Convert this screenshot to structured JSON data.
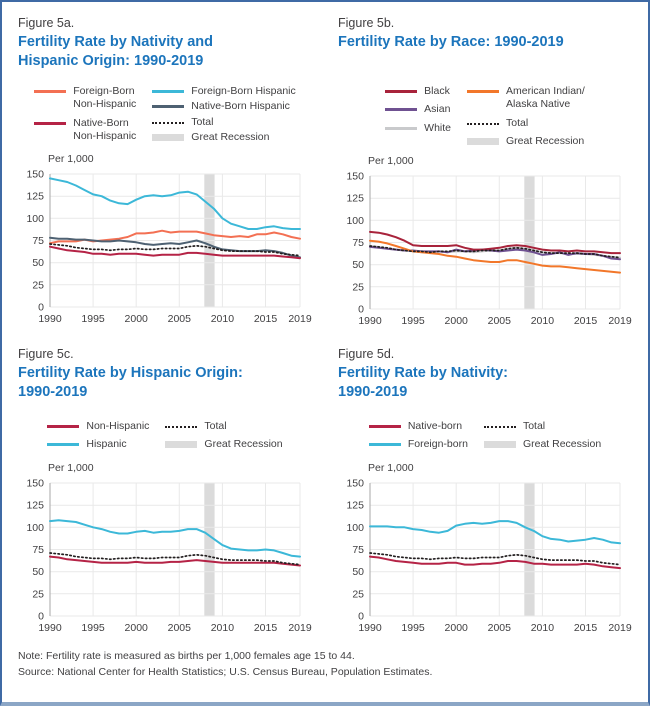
{
  "colors": {
    "title_blue": "#1C75BC",
    "text": "#414042",
    "border_blue": "#3F6AA5",
    "cyan": "#3CB8D8",
    "coral": "#F37053",
    "crimson": "#B52346",
    "slate": "#4E6172",
    "black_series": "#A8233B",
    "purple": "#6F5191",
    "white_series": "#C9CACC",
    "orange": "#F2772A",
    "dotted": "#231F20",
    "recession_band": "#DBDBDB",
    "gridline": "#E9E9E9",
    "axis": "#A7A7A7"
  },
  "figures": [
    {
      "label": "Figure 5a.",
      "title_lines": [
        "Fertility Rate by Nativity and",
        "Hispanic Origin: 1990-2019"
      ],
      "unit_label": "Per 1,000",
      "legend": {
        "col1": [
          {
            "type": "line",
            "color": "#F37053",
            "label": "Foreign-Born\nNon-Hispanic"
          },
          {
            "type": "line",
            "color": "#B52346",
            "label": "Native-Born\nNon-Hispanic"
          }
        ],
        "col2": [
          {
            "type": "line",
            "color": "#3CB8D8",
            "label": "Foreign-Born Hispanic"
          },
          {
            "type": "line",
            "color": "#4E6172",
            "label": "Native-Born Hispanic"
          },
          {
            "type": "dotted",
            "color": "#231F20",
            "label": "Total"
          },
          {
            "type": "band",
            "color": "#DBDBDB",
            "label": "Great Recession"
          }
        ]
      }
    },
    {
      "label": "Figure 5b.",
      "title_lines": [
        "Fertility Rate by Race: 1990-2019"
      ],
      "unit_label": "Per 1,000",
      "legend": {
        "col1": [
          {
            "type": "line",
            "color": "#A8233B",
            "label": "Black"
          },
          {
            "type": "line",
            "color": "#6F5191",
            "label": "Asian"
          },
          {
            "type": "line",
            "color": "#C9CACC",
            "label": "White"
          }
        ],
        "col2": [
          {
            "type": "line",
            "color": "#F2772A",
            "label": "American Indian/\nAlaska Native"
          },
          {
            "type": "dotted",
            "color": "#231F20",
            "label": "Total"
          },
          {
            "type": "band",
            "color": "#DBDBDB",
            "label": "Great Recession"
          }
        ]
      }
    },
    {
      "label": "Figure 5c.",
      "title_lines": [
        "Fertility Rate by Hispanic Origin:",
        "1990-2019"
      ],
      "unit_label": "Per 1,000",
      "legend": {
        "col1": [
          {
            "type": "line",
            "color": "#B52346",
            "label": "Non-Hispanic"
          },
          {
            "type": "line",
            "color": "#3CB8D8",
            "label": "Hispanic"
          }
        ],
        "col2": [
          {
            "type": "dotted",
            "color": "#231F20",
            "label": "Total"
          },
          {
            "type": "band",
            "color": "#DBDBDB",
            "label": "Great Recession"
          }
        ]
      }
    },
    {
      "label": "Figure 5d.",
      "title_lines": [
        "Fertility Rate by Nativity:",
        "1990-2019"
      ],
      "unit_label": "Per 1,000",
      "legend": {
        "col1": [
          {
            "type": "line",
            "color": "#B52346",
            "label": "Native-born"
          },
          {
            "type": "line",
            "color": "#3CB8D8",
            "label": "Foreign-born"
          }
        ],
        "col2": [
          {
            "type": "dotted",
            "color": "#231F20",
            "label": "Total"
          },
          {
            "type": "band",
            "color": "#DBDBDB",
            "label": "Great Recession"
          }
        ]
      }
    }
  ],
  "chart_data": [
    {
      "type": "line",
      "figure": "Figure 5a.",
      "title": "Fertility Rate by Nativity and Hispanic Origin: 1990-2019",
      "ylabel": "Per 1,000",
      "ylim": [
        0,
        150
      ],
      "yticks": [
        0,
        25,
        50,
        75,
        100,
        125,
        150
      ],
      "xticks": [
        1990,
        1995,
        2000,
        2005,
        2010,
        2015,
        2019
      ],
      "recession_band": [
        2007.9,
        2009.1
      ],
      "x": [
        1990,
        1991,
        1992,
        1993,
        1994,
        1995,
        1996,
        1997,
        1998,
        1999,
        2000,
        2001,
        2002,
        2003,
        2004,
        2005,
        2006,
        2007,
        2008,
        2009,
        2010,
        2011,
        2012,
        2013,
        2014,
        2015,
        2016,
        2017,
        2018,
        2019
      ],
      "series": [
        {
          "name": "Foreign-Born Hispanic",
          "color": "#3CB8D8",
          "style": "solid",
          "values": [
            145,
            143,
            141,
            137,
            132,
            127,
            125,
            120,
            117,
            116,
            121,
            125,
            126,
            125,
            126,
            129,
            130,
            127,
            119,
            111,
            100,
            94,
            91,
            88,
            88,
            90,
            91,
            89,
            88,
            88
          ]
        },
        {
          "name": "Foreign-Born Non-Hispanic",
          "color": "#F37053",
          "style": "solid",
          "values": [
            72,
            74,
            74,
            74,
            76,
            74,
            75,
            76,
            77,
            79,
            83,
            83,
            84,
            86,
            84,
            85,
            85,
            85,
            83,
            81,
            80,
            79,
            80,
            79,
            82,
            82,
            84,
            82,
            79,
            77
          ]
        },
        {
          "name": "Native-Born Hispanic",
          "color": "#4E6172",
          "style": "solid",
          "values": [
            78,
            77,
            77,
            76,
            76,
            75,
            74,
            74,
            75,
            74,
            73,
            71,
            70,
            71,
            72,
            71,
            73,
            75,
            72,
            68,
            65,
            64,
            63,
            63,
            63,
            64,
            63,
            61,
            58,
            56
          ]
        },
        {
          "name": "Native-Born Non-Hispanic",
          "color": "#B52346",
          "style": "solid",
          "values": [
            68,
            66,
            64,
            63,
            62,
            60,
            60,
            59,
            60,
            60,
            60,
            59,
            58,
            59,
            59,
            59,
            61,
            61,
            60,
            59,
            58,
            58,
            58,
            58,
            58,
            58,
            58,
            57,
            56,
            55
          ]
        },
        {
          "name": "Total",
          "color": "#231F20",
          "style": "dotted",
          "values": [
            71,
            70,
            69,
            67,
            66,
            65,
            65,
            64,
            65,
            65,
            66,
            65,
            65,
            66,
            66,
            66,
            68,
            69,
            68,
            66,
            64,
            63,
            63,
            63,
            63,
            62,
            62,
            60,
            59,
            58
          ]
        }
      ]
    },
    {
      "type": "line",
      "figure": "Figure 5b.",
      "title": "Fertility Rate by Race: 1990-2019",
      "ylabel": "Per 1,000",
      "ylim": [
        0,
        150
      ],
      "yticks": [
        0,
        25,
        50,
        75,
        100,
        125,
        150
      ],
      "xticks": [
        1990,
        1995,
        2000,
        2005,
        2010,
        2015,
        2019
      ],
      "recession_band": [
        2007.9,
        2009.1
      ],
      "x": [
        1990,
        1991,
        1992,
        1993,
        1994,
        1995,
        1996,
        1997,
        1998,
        1999,
        2000,
        2001,
        2002,
        2003,
        2004,
        2005,
        2006,
        2007,
        2008,
        2009,
        2010,
        2011,
        2012,
        2013,
        2014,
        2015,
        2016,
        2017,
        2018,
        2019
      ],
      "series": [
        {
          "name": "White",
          "color": "#C9CACC",
          "style": "solid",
          "values": [
            71,
            70,
            68,
            67,
            66,
            65,
            64,
            64,
            65,
            64,
            65,
            65,
            64,
            65,
            66,
            66,
            68,
            69,
            68,
            66,
            64,
            63,
            63,
            62,
            62,
            62,
            61,
            60,
            59,
            58
          ]
        },
        {
          "name": "Asian",
          "color": "#6F5191",
          "style": "solid",
          "values": [
            70,
            69,
            68,
            67,
            66,
            66,
            65,
            65,
            65,
            64,
            67,
            65,
            66,
            67,
            66,
            65,
            66,
            67,
            66,
            64,
            61,
            62,
            64,
            61,
            63,
            62,
            62,
            60,
            57,
            56
          ]
        },
        {
          "name": "Black",
          "color": "#A8233B",
          "style": "solid",
          "values": [
            87,
            86,
            84,
            81,
            77,
            72,
            71,
            71,
            71,
            71,
            72,
            69,
            67,
            67,
            68,
            69,
            71,
            72,
            71,
            69,
            67,
            66,
            66,
            65,
            66,
            65,
            65,
            64,
            63,
            63
          ]
        },
        {
          "name": "American Indian/Alaska Native",
          "color": "#F2772A",
          "style": "solid",
          "values": [
            77,
            76,
            74,
            71,
            68,
            65,
            64,
            63,
            62,
            60,
            59,
            57,
            55,
            54,
            53,
            53,
            55,
            55,
            53,
            51,
            49,
            48,
            48,
            47,
            46,
            45,
            44,
            43,
            42,
            41
          ]
        },
        {
          "name": "Total",
          "color": "#231F20",
          "style": "dotted",
          "values": [
            71,
            70,
            69,
            67,
            66,
            65,
            65,
            64,
            65,
            65,
            66,
            65,
            65,
            66,
            66,
            66,
            68,
            69,
            68,
            66,
            64,
            63,
            63,
            63,
            63,
            62,
            62,
            60,
            59,
            58
          ]
        }
      ]
    },
    {
      "type": "line",
      "figure": "Figure 5c.",
      "title": "Fertility Rate by Hispanic Origin: 1990-2019",
      "ylabel": "Per 1,000",
      "ylim": [
        0,
        150
      ],
      "yticks": [
        0,
        25,
        50,
        75,
        100,
        125,
        150
      ],
      "xticks": [
        1990,
        1995,
        2000,
        2005,
        2010,
        2015,
        2019
      ],
      "recession_band": [
        2007.9,
        2009.1
      ],
      "x": [
        1990,
        1991,
        1992,
        1993,
        1994,
        1995,
        1996,
        1997,
        1998,
        1999,
        2000,
        2001,
        2002,
        2003,
        2004,
        2005,
        2006,
        2007,
        2008,
        2009,
        2010,
        2011,
        2012,
        2013,
        2014,
        2015,
        2016,
        2017,
        2018,
        2019
      ],
      "series": [
        {
          "name": "Hispanic",
          "color": "#3CB8D8",
          "style": "solid",
          "values": [
            107,
            108,
            107,
            106,
            103,
            100,
            98,
            95,
            93,
            93,
            95,
            96,
            94,
            95,
            95,
            96,
            98,
            98,
            94,
            87,
            80,
            76,
            75,
            74,
            74,
            75,
            74,
            71,
            68,
            67
          ]
        },
        {
          "name": "Non-Hispanic",
          "color": "#B52346",
          "style": "solid",
          "values": [
            67,
            66,
            64,
            63,
            62,
            61,
            60,
            60,
            60,
            60,
            61,
            60,
            60,
            60,
            61,
            61,
            62,
            63,
            62,
            61,
            60,
            60,
            60,
            60,
            60,
            60,
            60,
            59,
            58,
            57
          ]
        },
        {
          "name": "Total",
          "color": "#231F20",
          "style": "dotted",
          "values": [
            71,
            70,
            69,
            67,
            66,
            65,
            65,
            64,
            65,
            65,
            66,
            65,
            65,
            66,
            66,
            66,
            68,
            69,
            68,
            66,
            64,
            63,
            63,
            63,
            63,
            62,
            62,
            60,
            59,
            58
          ]
        }
      ]
    },
    {
      "type": "line",
      "figure": "Figure 5d.",
      "title": "Fertility Rate by Nativity: 1990-2019",
      "ylabel": "Per 1,000",
      "ylim": [
        0,
        150
      ],
      "yticks": [
        0,
        25,
        50,
        75,
        100,
        125,
        150
      ],
      "xticks": [
        1990,
        1995,
        2000,
        2005,
        2010,
        2015,
        2019
      ],
      "recession_band": [
        2007.9,
        2009.1
      ],
      "x": [
        1990,
        1991,
        1992,
        1993,
        1994,
        1995,
        1996,
        1997,
        1998,
        1999,
        2000,
        2001,
        2002,
        2003,
        2004,
        2005,
        2006,
        2007,
        2008,
        2009,
        2010,
        2011,
        2012,
        2013,
        2014,
        2015,
        2016,
        2017,
        2018,
        2019
      ],
      "series": [
        {
          "name": "Foreign-born",
          "color": "#3CB8D8",
          "style": "solid",
          "values": [
            101,
            101,
            101,
            100,
            100,
            98,
            97,
            95,
            94,
            96,
            102,
            104,
            105,
            104,
            105,
            107,
            107,
            105,
            100,
            96,
            90,
            87,
            86,
            84,
            85,
            86,
            88,
            86,
            83,
            82
          ]
        },
        {
          "name": "Native-born",
          "color": "#B52346",
          "style": "solid",
          "values": [
            67,
            66,
            64,
            62,
            61,
            60,
            59,
            59,
            59,
            60,
            60,
            58,
            58,
            59,
            59,
            60,
            62,
            62,
            61,
            59,
            59,
            58,
            58,
            58,
            58,
            59,
            58,
            56,
            55,
            54
          ]
        },
        {
          "name": "Total",
          "color": "#231F20",
          "style": "dotted",
          "values": [
            71,
            70,
            69,
            67,
            66,
            65,
            65,
            64,
            65,
            65,
            66,
            65,
            65,
            66,
            66,
            66,
            68,
            69,
            68,
            66,
            64,
            63,
            63,
            63,
            63,
            62,
            62,
            60,
            59,
            58
          ]
        }
      ]
    }
  ],
  "footer": {
    "note": "Note: Fertility rate is measured as births per 1,000 females age 15 to 44.",
    "source": "Source: National Center for Health Statistics; U.S. Census Bureau, Population Estimates."
  }
}
